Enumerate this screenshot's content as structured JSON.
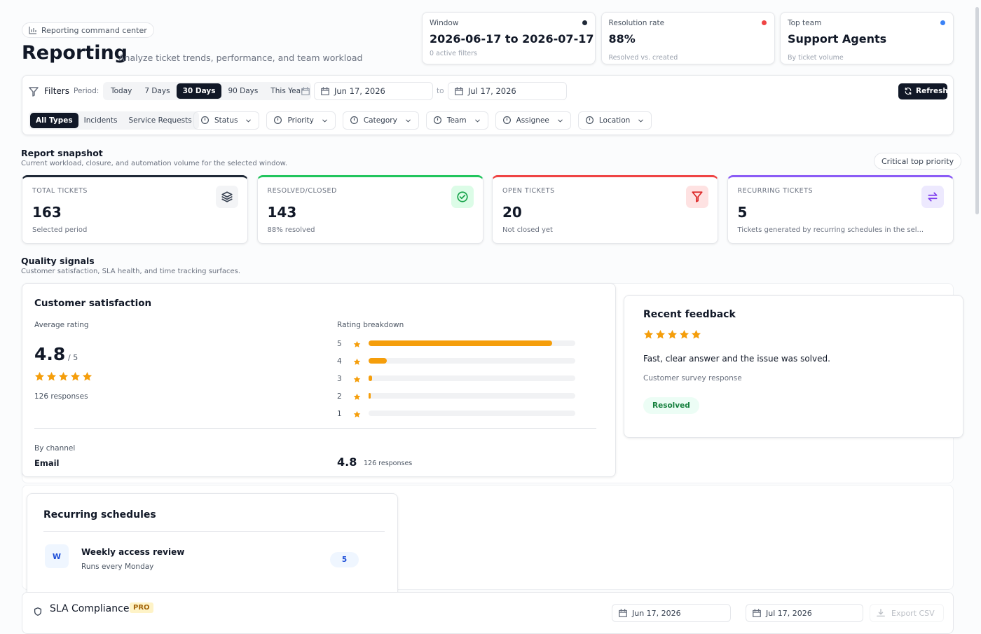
{
  "header": {
    "badge": "Reporting command center",
    "title": "Reporting",
    "subtitle": "Analyze ticket trends, performance, and team workload"
  },
  "summary_cards": [
    {
      "label": "Window",
      "value": "2026-06-17 to 2026-07-17",
      "note": "0 active filters",
      "dot": "#1f2937"
    },
    {
      "label": "Resolution rate",
      "value": "88%",
      "note": "Resolved vs. created",
      "dot": "#ef4444"
    },
    {
      "label": "Top team",
      "value": "Support Agents",
      "note": "By ticket volume",
      "dot": "#3b82f6"
    }
  ],
  "filters": {
    "label": "Filters",
    "period_label": "Period:",
    "periods": [
      "Today",
      "7 Days",
      "30 Days",
      "90 Days",
      "This Year"
    ],
    "selected_period": 2,
    "start_date": "Jun 17, 2026",
    "to": "to",
    "end_date": "Jul 17, 2026",
    "refresh": "Refresh",
    "types": [
      "All Types",
      "Incidents",
      "Service Requests"
    ],
    "selected_type": 0,
    "dropdowns": [
      "Status",
      "Priority",
      "Category",
      "Team",
      "Assignee",
      "Location"
    ]
  },
  "snapshot": {
    "title": "Report snapshot",
    "subtitle": "Current workload, closure, and automation volume for the selected window.",
    "toggle": "Critical top priority",
    "cards": [
      {
        "label": "TOTAL TICKETS",
        "value": 163,
        "note": "Selected period",
        "accent": "#1f2937"
      },
      {
        "label": "RESOLVED/CLOSED",
        "value": 143,
        "note": "88% resolved",
        "accent": "#22c55e"
      },
      {
        "label": "OPEN TICKETS",
        "value": 20,
        "note": "Not closed yet",
        "accent": "#ef4444"
      },
      {
        "label": "RECURRING TICKETS",
        "value": 5,
        "note": "Tickets generated by recurring schedules in the sel...",
        "accent": "#8b5cf6"
      }
    ]
  },
  "quality": {
    "title": "Quality signals",
    "subtitle": "Customer satisfaction, SLA health, and time tracking surfaces.",
    "satisfaction": {
      "title": "Customer satisfaction",
      "avg_label": "Average rating",
      "average": 4.8,
      "out_of": "/ 5",
      "responses": "126 responses",
      "breakdown_label": "Rating breakdown",
      "breakdown": [
        {
          "rating": 5,
          "count": 112
        },
        {
          "rating": 4,
          "count": 11
        },
        {
          "rating": 3,
          "count": 2
        },
        {
          "rating": 2,
          "count": 1
        },
        {
          "rating": 1,
          "count": 0
        }
      ],
      "by_channel_label": "By channel",
      "channels": [
        {
          "name": "Email",
          "rating": 4.8,
          "responses": "126 responses"
        }
      ]
    },
    "feedback": {
      "title": "Recent feedback",
      "rating": 5,
      "comment": "Fast, clear answer and the issue was solved.",
      "source": "Customer survey response",
      "status": "Resolved"
    }
  },
  "recurring": {
    "title": "Recurring schedules",
    "items": [
      {
        "initial": "W",
        "name": "Weekly access review",
        "schedule": "Runs every Monday",
        "count": 5
      }
    ]
  },
  "sla": {
    "title": "SLA Compliance",
    "badge": "PRO",
    "start_date": "Jun 17, 2026",
    "end_date": "Jul 17, 2026",
    "export": "Export CSV"
  }
}
